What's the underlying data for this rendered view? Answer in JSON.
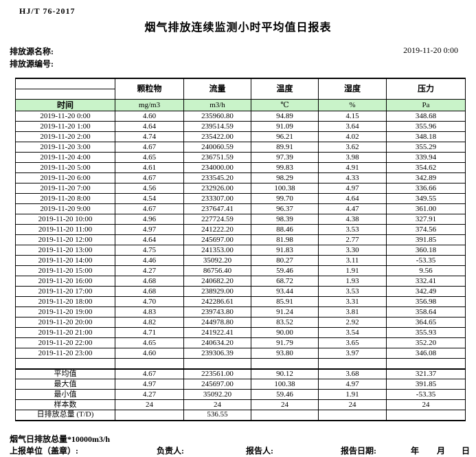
{
  "header": {
    "standard_no": "HJ/T  76-2017",
    "title": "烟气排放连续监测小时平均值日报表",
    "source_name_label": "排放源名称:",
    "source_code_label": "排放源编号:",
    "report_datetime": "2019-11-20  0:00"
  },
  "table": {
    "time_header": "时间",
    "columns": [
      {
        "name": "颗粒物",
        "unit": "mg/m3"
      },
      {
        "name": "流量",
        "unit": "m3/h"
      },
      {
        "name": "温度",
        "unit": "℃"
      },
      {
        "name": "湿度",
        "unit": "%"
      },
      {
        "name": "压力",
        "unit": "Pa"
      }
    ],
    "rows": [
      {
        "time": "2019-11-20 0:00",
        "values": [
          "4.60",
          "235960.80",
          "94.89",
          "4.15",
          "348.68"
        ]
      },
      {
        "time": "2019-11-20 1:00",
        "values": [
          "4.64",
          "239514.59",
          "91.09",
          "3.64",
          "355.96"
        ]
      },
      {
        "time": "2019-11-20 2:00",
        "values": [
          "4.74",
          "235422.00",
          "96.21",
          "4.02",
          "348.18"
        ]
      },
      {
        "time": "2019-11-20 3:00",
        "values": [
          "4.67",
          "240060.59",
          "89.91",
          "3.62",
          "355.29"
        ]
      },
      {
        "time": "2019-11-20 4:00",
        "values": [
          "4.65",
          "236751.59",
          "97.39",
          "3.98",
          "339.94"
        ]
      },
      {
        "time": "2019-11-20 5:00",
        "values": [
          "4.61",
          "234000.00",
          "99.83",
          "4.91",
          "354.62"
        ]
      },
      {
        "time": "2019-11-20 6:00",
        "values": [
          "4.67",
          "233545.20",
          "98.29",
          "4.33",
          "342.89"
        ]
      },
      {
        "time": "2019-11-20 7:00",
        "values": [
          "4.56",
          "232926.00",
          "100.38",
          "4.97",
          "336.66"
        ]
      },
      {
        "time": "2019-11-20 8:00",
        "values": [
          "4.54",
          "233307.00",
          "99.70",
          "4.64",
          "349.55"
        ]
      },
      {
        "time": "2019-11-20 9:00",
        "values": [
          "4.67",
          "237647.41",
          "96.37",
          "4.47",
          "361.00"
        ]
      },
      {
        "time": "2019-11-20 10:00",
        "values": [
          "4.96",
          "227724.59",
          "98.39",
          "4.38",
          "327.91"
        ]
      },
      {
        "time": "2019-11-20 11:00",
        "values": [
          "4.97",
          "241222.20",
          "88.46",
          "3.53",
          "374.56"
        ]
      },
      {
        "time": "2019-11-20 12:00",
        "values": [
          "4.64",
          "245697.00",
          "81.98",
          "2.77",
          "391.85"
        ]
      },
      {
        "time": "2019-11-20 13:00",
        "values": [
          "4.75",
          "241353.00",
          "91.83",
          "3.30",
          "360.18"
        ]
      },
      {
        "time": "2019-11-20 14:00",
        "values": [
          "4.46",
          "35092.20",
          "80.27",
          "3.11",
          "-53.35"
        ]
      },
      {
        "time": "2019-11-20 15:00",
        "values": [
          "4.27",
          "86756.40",
          "59.46",
          "1.91",
          "9.56"
        ]
      },
      {
        "time": "2019-11-20 16:00",
        "values": [
          "4.68",
          "240682.20",
          "68.72",
          "1.93",
          "332.41"
        ]
      },
      {
        "time": "2019-11-20 17:00",
        "values": [
          "4.68",
          "238929.00",
          "93.44",
          "3.53",
          "342.49"
        ]
      },
      {
        "time": "2019-11-20 18:00",
        "values": [
          "4.70",
          "242286.61",
          "85.91",
          "3.31",
          "356.98"
        ]
      },
      {
        "time": "2019-11-20 19:00",
        "values": [
          "4.83",
          "239743.80",
          "91.24",
          "3.81",
          "358.64"
        ]
      },
      {
        "time": "2019-11-20 20:00",
        "values": [
          "4.82",
          "244978.80",
          "83.52",
          "2.92",
          "364.65"
        ]
      },
      {
        "time": "2019-11-20 21:00",
        "values": [
          "4.71",
          "241922.41",
          "90.00",
          "3.54",
          "355.93"
        ]
      },
      {
        "time": "2019-11-20 22:00",
        "values": [
          "4.65",
          "240634.20",
          "91.79",
          "3.65",
          "352.20"
        ]
      },
      {
        "time": "2019-11-20 23:00",
        "values": [
          "4.60",
          "239306.39",
          "93.80",
          "3.97",
          "346.08"
        ]
      }
    ],
    "summary_rows": [
      {
        "label": "平均值",
        "values": [
          "4.67",
          "223561.00",
          "90.12",
          "3.68",
          "321.37"
        ]
      },
      {
        "label": "最大值",
        "values": [
          "4.97",
          "245697.00",
          "100.38",
          "4.97",
          "391.85"
        ]
      },
      {
        "label": "最小值",
        "values": [
          "4.27",
          "35092.20",
          "59.46",
          "1.91",
          "-53.35"
        ]
      },
      {
        "label": "样本数",
        "values": [
          "24",
          "24",
          "24",
          "24",
          "24"
        ]
      },
      {
        "label": "日排放总量 (T/D)",
        "values": [
          "",
          "536.55",
          "",
          "",
          ""
        ]
      }
    ]
  },
  "footer": {
    "note": "烟气日排放总量*10000m3/h",
    "report_unit_label": "上报单位（盖章）:",
    "responsible_label": "负责人:",
    "reporter_label": "报告人:",
    "report_date_label": "报告日期:",
    "year_label": "年",
    "month_label": "月",
    "day_label": "日"
  },
  "colors": {
    "header_green": "#c9f3c9"
  }
}
